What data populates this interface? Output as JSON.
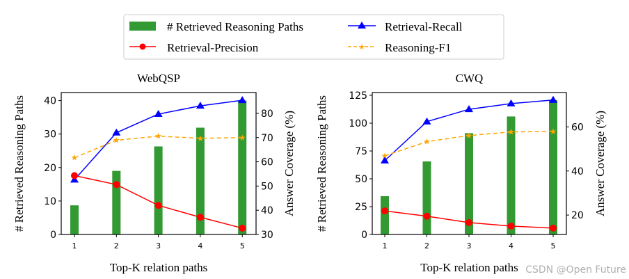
{
  "legend": {
    "items": [
      {
        "label": "# Retrieved Reasoning Paths",
        "color": "#339933",
        "kind": "bar"
      },
      {
        "label": "Retrieval-Recall",
        "color": "#0000ff",
        "kind": "line-triangle"
      },
      {
        "label": "Retrieval-Precision",
        "color": "#ff0000",
        "kind": "line-circle"
      },
      {
        "label": "Reasoning-F1",
        "color": "#ffa500",
        "kind": "dashed-star"
      }
    ],
    "placement": "top-center"
  },
  "watermark": "CSDN @Open Future",
  "chart_data": [
    {
      "type": "bar+line",
      "title": "WebQSP",
      "xlabel": "Top-K relation paths",
      "ylabel": "# Retrieved Reasoning Paths",
      "ylabel_right": "Answer Coverage (%)",
      "categories": [
        "1",
        "2",
        "3",
        "4",
        "5"
      ],
      "ylim": [
        0,
        42.4
      ],
      "yticks": [
        "0",
        "10",
        "20",
        "30",
        "40"
      ],
      "ylim_right": [
        30,
        88.6
      ],
      "yticks_right": [
        "30",
        "40",
        "50",
        "60",
        "70",
        "80"
      ],
      "bars": {
        "name": "# Retrieved Reasoning Paths",
        "values": [
          8.7,
          19.0,
          26.3,
          31.9,
          40.0
        ]
      },
      "series": [
        {
          "name": "Retrieval-Recall",
          "values": [
            52.6,
            72.0,
            79.7,
            83.1,
            85.4
          ]
        },
        {
          "name": "Retrieval-Precision",
          "values": [
            54.3,
            50.6,
            42.0,
            37.1,
            32.6
          ]
        },
        {
          "name": "Reasoning-F1",
          "values": [
            61.7,
            68.9,
            70.6,
            69.7,
            70.0
          ]
        }
      ],
      "grid": false
    },
    {
      "type": "bar+line",
      "title": "CWQ",
      "xlabel": "Top-K relation paths",
      "ylabel": "# Retrieved Reasoning Paths",
      "ylabel_right": "Answer Coverage (%)",
      "categories": [
        "1",
        "2",
        "3",
        "4",
        "5"
      ],
      "ylim": [
        0,
        127.5
      ],
      "yticks": [
        "0",
        "25",
        "50",
        "75",
        "100",
        "125"
      ],
      "ylim_right": [
        11.2,
        75.6
      ],
      "yticks_right": [
        "20",
        "40",
        "60"
      ],
      "bars": {
        "name": "# Retrieved Reasoning Paths",
        "values": [
          34.4,
          65.6,
          91.0,
          106.0,
          120.6
        ]
      },
      "series": [
        {
          "name": "Retrieval-Recall",
          "values": [
            44.7,
            62.4,
            68.0,
            70.6,
            72.2
          ]
        },
        {
          "name": "Retrieval-Precision",
          "values": [
            21.9,
            19.5,
            16.6,
            15.0,
            14.1
          ]
        },
        {
          "name": "Reasoning-F1",
          "values": [
            46.9,
            53.3,
            56.1,
            57.7,
            58.0
          ]
        }
      ],
      "grid": false
    }
  ]
}
